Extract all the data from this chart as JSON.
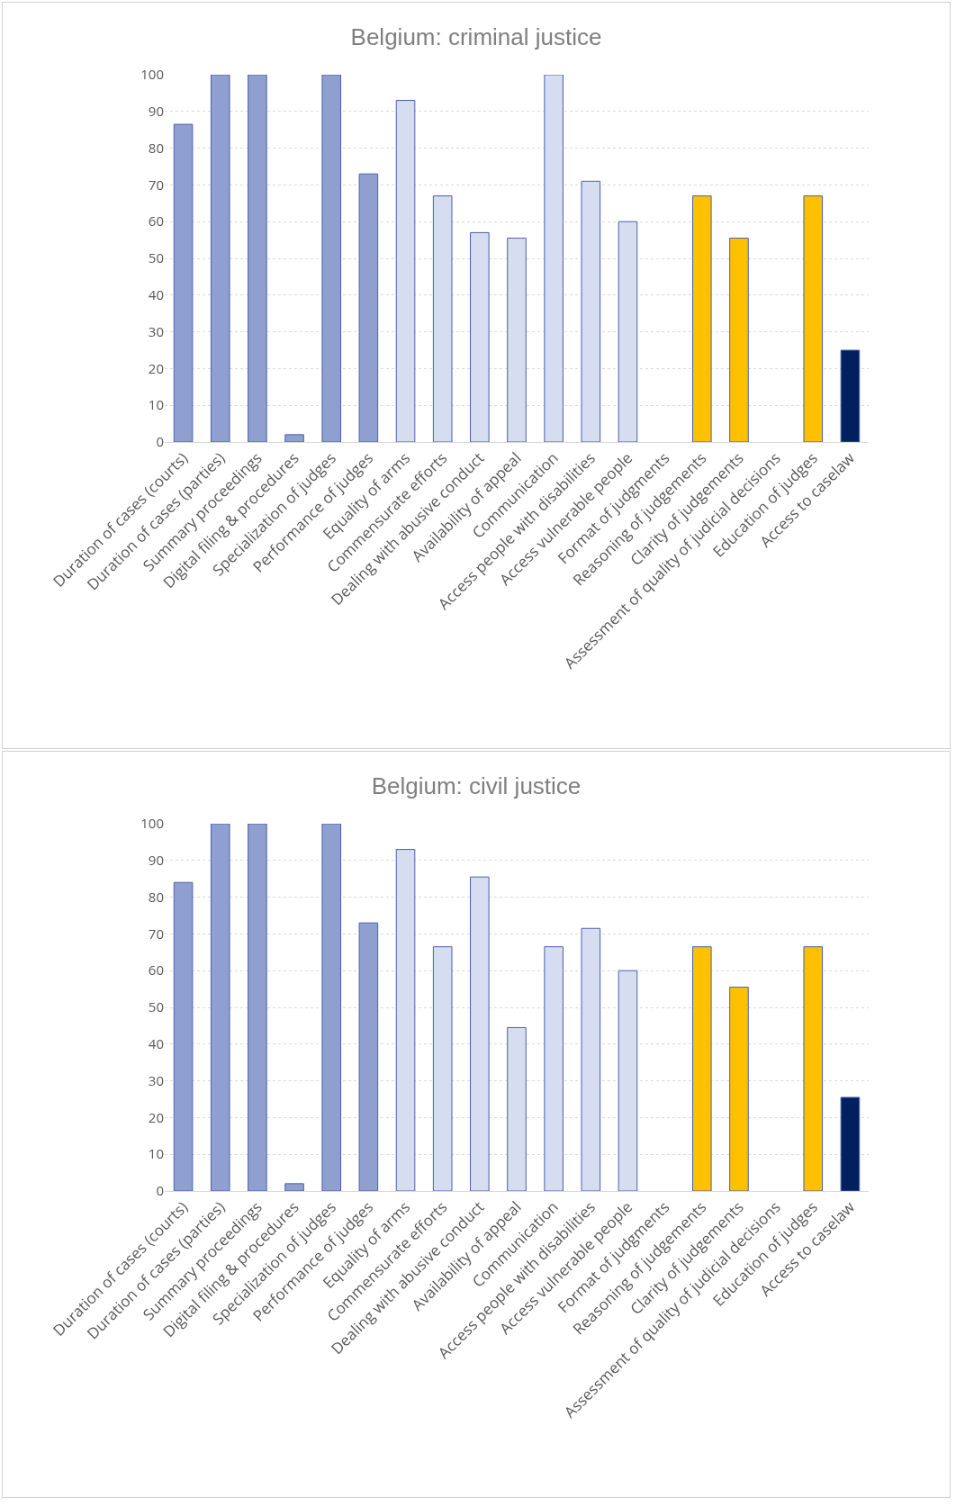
{
  "chart_data": [
    {
      "type": "bar",
      "title": "Belgium: criminal justice",
      "categories": [
        "Duration of cases (courts)",
        "Duration of cases (parties)",
        "Summary proceedings",
        "Digital filing & procedures",
        "Specialization of judges",
        "Performance of judges",
        "Equality of arms",
        "Commensurate efforts",
        "Dealing with abusive conduct",
        "Availability of appeal",
        "Communication",
        "Access people with disabilities",
        "Access vulnerable people",
        "Format of judgments",
        "Reasoning of judgements",
        "Clarity of judgements",
        "Assessment of quality of judicial decisions",
        "Education of judges",
        "Access to caselaw"
      ],
      "values": [
        86.5,
        100,
        100,
        2,
        100,
        73,
        93,
        67,
        57,
        55.5,
        100,
        71,
        60,
        null,
        67,
        55.5,
        null,
        67,
        25
      ],
      "colors": [
        "#8f9fcf",
        "#8f9fcf",
        "#8f9fcf",
        "#8f9fcf",
        "#8f9fcf",
        "#8f9fcf",
        "#d6ddf0",
        "#d6ddf0",
        "#d6ddf0",
        "#d6ddf0",
        "#d6ddf0",
        "#d6ddf0",
        "#d6ddf0",
        "#d6ddf0",
        "#ffc000",
        "#ffc000",
        "#ffc000",
        "#ffc000",
        "#002060"
      ],
      "ylim": [
        0,
        100
      ],
      "yticks": [
        0,
        10,
        20,
        30,
        40,
        50,
        60,
        70,
        80,
        90,
        100
      ],
      "grid": "y"
    },
    {
      "type": "bar",
      "title": "Belgium: civil justice",
      "categories": [
        "Duration of cases (courts)",
        "Duration of cases (parties)",
        "Summary proceedings",
        "Digital filing & procedures",
        "Specialization of judges",
        "Performance of judges",
        "Equality of arms",
        "Commensurate efforts",
        "Dealing with abusive conduct",
        "Availability of appeal",
        "Communication",
        "Access people with disabilities",
        "Access vulnerable people",
        "Format of judgments",
        "Reasoning of judgements",
        "Clarity of judgements",
        "Assessment of quality of judicial decisions",
        "Education of judges",
        "Access to caselaw"
      ],
      "values": [
        84,
        100,
        100,
        2,
        100,
        73,
        93,
        66.5,
        85.5,
        44.5,
        66.5,
        71.5,
        60,
        null,
        66.5,
        55.5,
        null,
        66.5,
        25.5
      ],
      "colors": [
        "#8f9fcf",
        "#8f9fcf",
        "#8f9fcf",
        "#8f9fcf",
        "#8f9fcf",
        "#8f9fcf",
        "#d6ddf0",
        "#d6ddf0",
        "#d6ddf0",
        "#d6ddf0",
        "#d6ddf0",
        "#d6ddf0",
        "#d6ddf0",
        "#d6ddf0",
        "#ffc000",
        "#ffc000",
        "#ffc000",
        "#ffc000",
        "#002060"
      ],
      "ylim": [
        0,
        100
      ],
      "yticks": [
        0,
        10,
        20,
        30,
        40,
        50,
        60,
        70,
        80,
        90,
        100
      ],
      "grid": "y"
    }
  ]
}
